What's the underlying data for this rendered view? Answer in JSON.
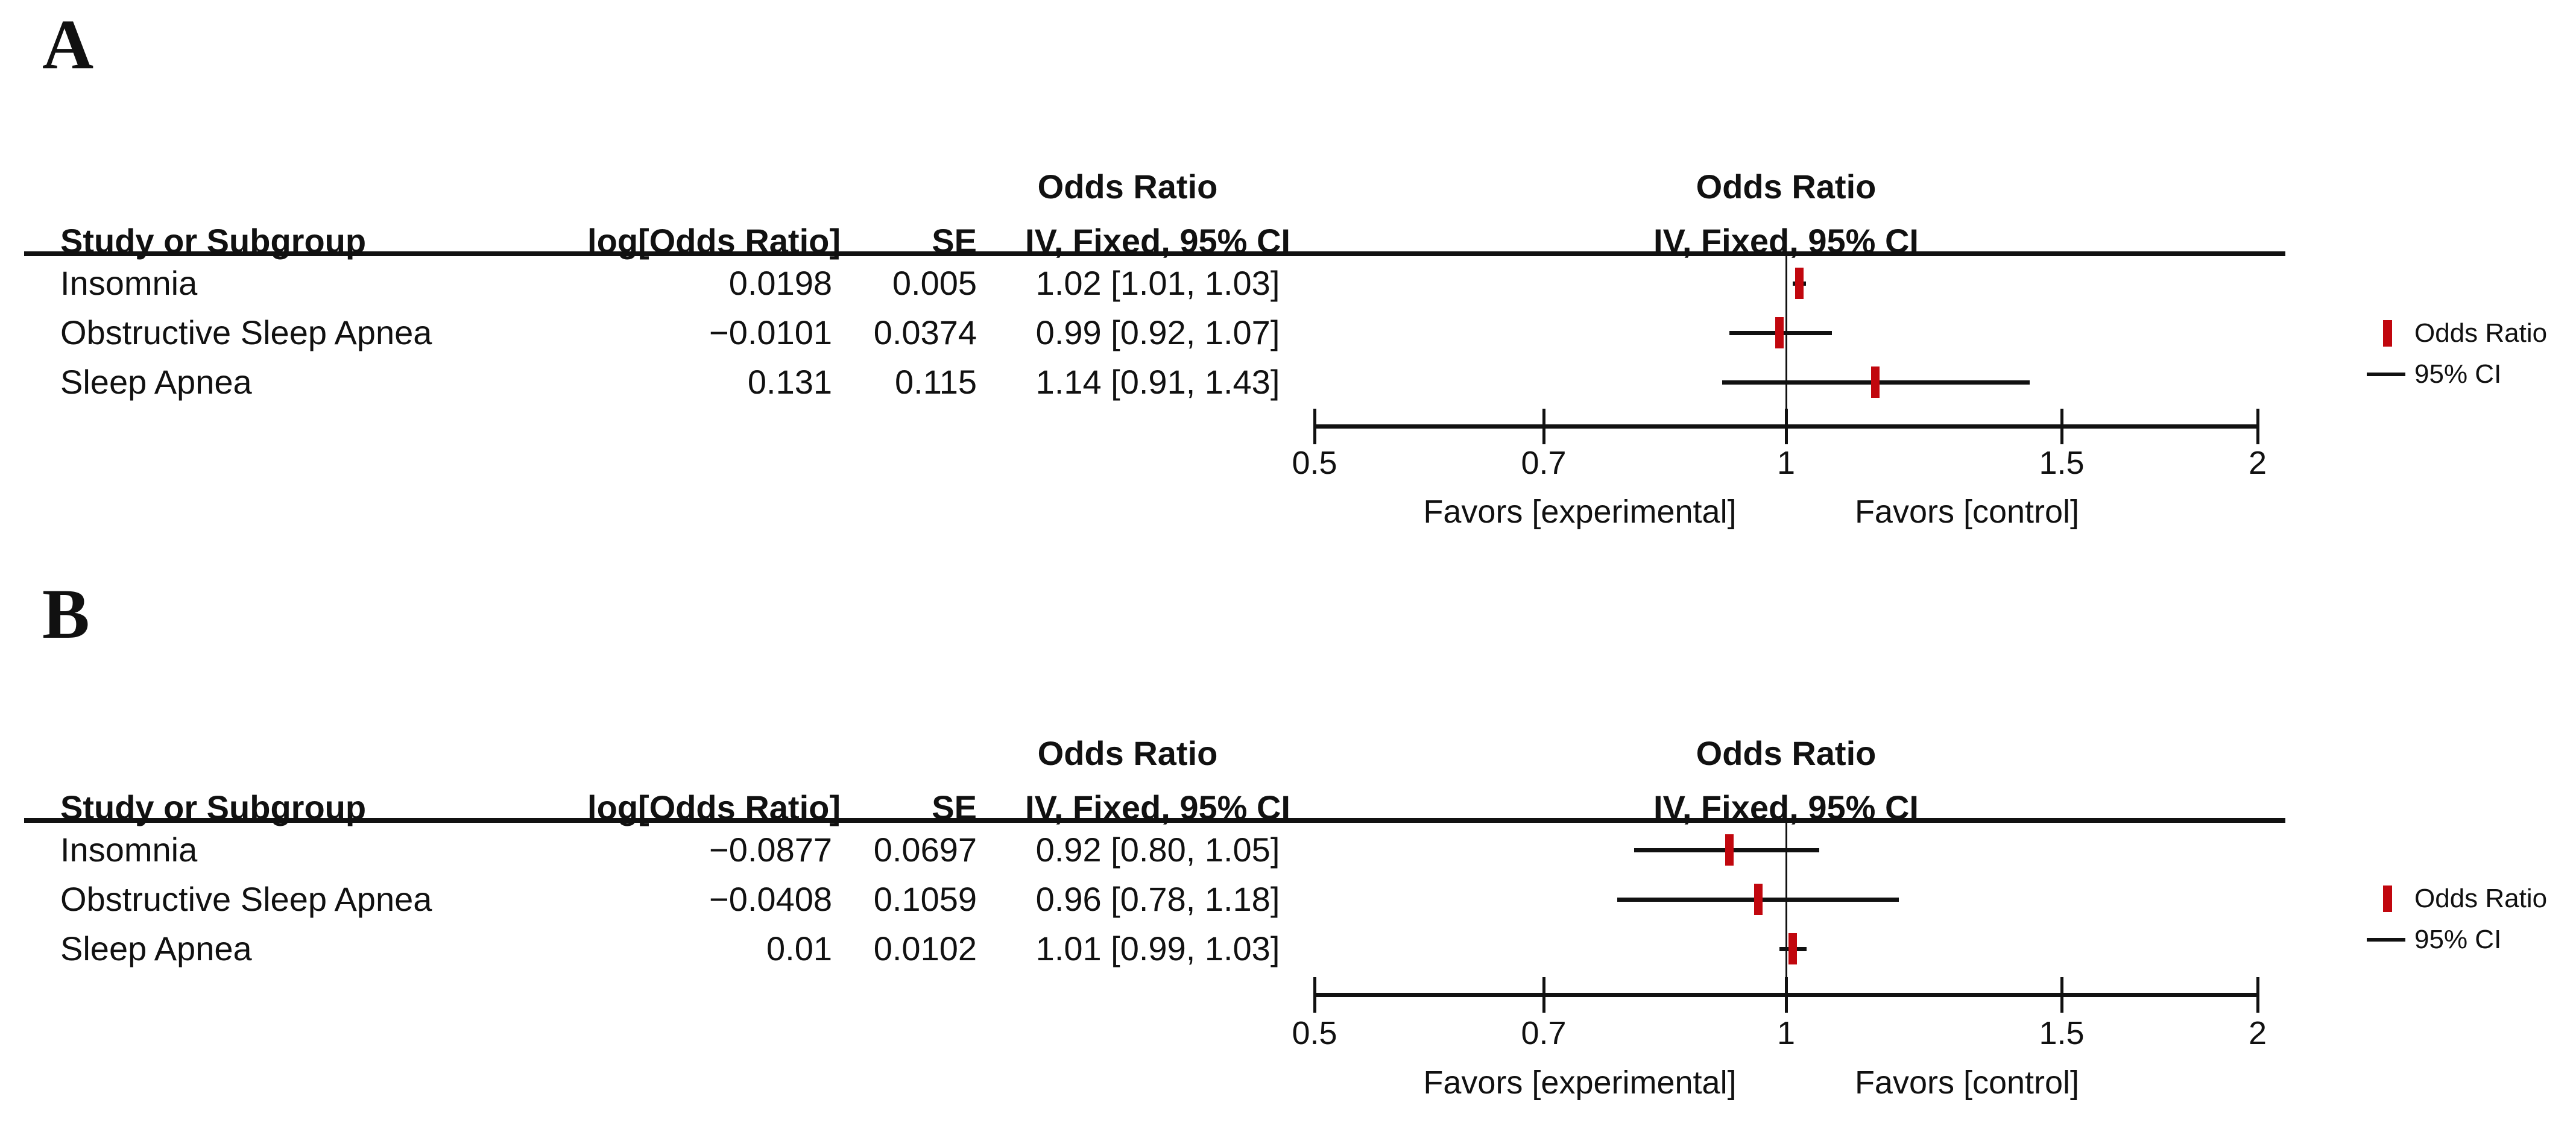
{
  "figure": {
    "background": "#ffffff",
    "line_color": "#111111",
    "accent_red": "#c1070e"
  },
  "legend": {
    "marker_label": "Odds Ratio",
    "line_label": "95% CI"
  },
  "panels": [
    {
      "label": "A",
      "col_headers": {
        "study": "Study or Subgroup",
        "log_or": "log[Odds Ratio]",
        "se": "SE",
        "or_group": "Odds Ratio",
        "or_ci": "IV, Fixed, 95% CI",
        "plot_group": "Odds Ratio",
        "plot_ci": "IV, Fixed, 95% CI"
      },
      "rows": [
        {
          "study": "Insomnia",
          "log_or": "0.0198",
          "se": "0.005",
          "or_ci_text": "1.02 [1.01, 1.03]",
          "or": 1.02,
          "ci_low": 1.01,
          "ci_high": 1.03
        },
        {
          "study": "Obstructive Sleep Apnea",
          "log_or": "−0.0101",
          "se": "0.0374",
          "or_ci_text": "0.99 [0.92, 1.07]",
          "or": 0.99,
          "ci_low": 0.92,
          "ci_high": 1.07
        },
        {
          "study": "Sleep Apnea",
          "log_or": "0.131",
          "se": "0.115",
          "or_ci_text": "1.14 [0.91, 1.43]",
          "or": 1.14,
          "ci_low": 0.91,
          "ci_high": 1.43
        }
      ],
      "axis": {
        "scale": "log",
        "min": 0.5,
        "max": 2,
        "tick_labels": [
          "0.5",
          "0.7",
          "1",
          "1.5",
          "2"
        ],
        "tick_values": [
          0.5,
          0.7,
          1,
          1.5,
          2
        ]
      },
      "favors_left": "Favors [experimental]",
      "favors_right": "Favors [control]"
    },
    {
      "label": "B",
      "col_headers": {
        "study": "Study or Subgroup",
        "log_or": "log[Odds Ratio]",
        "se": "SE",
        "or_group": "Odds Ratio",
        "or_ci": "IV, Fixed, 95% CI",
        "plot_group": "Odds Ratio",
        "plot_ci": "IV, Fixed, 95% CI"
      },
      "rows": [
        {
          "study": "Insomnia",
          "log_or": "−0.0877",
          "se": "0.0697",
          "or_ci_text": "0.92 [0.80, 1.05]",
          "or": 0.92,
          "ci_low": 0.8,
          "ci_high": 1.05
        },
        {
          "study": "Obstructive Sleep Apnea",
          "log_or": "−0.0408",
          "se": "0.1059",
          "or_ci_text": "0.96 [0.78, 1.18]",
          "or": 0.96,
          "ci_low": 0.78,
          "ci_high": 1.18
        },
        {
          "study": "Sleep Apnea",
          "log_or": "0.01",
          "se": "0.0102",
          "or_ci_text": "1.01 [0.99, 1.03]",
          "or": 1.01,
          "ci_low": 0.99,
          "ci_high": 1.03
        }
      ],
      "axis": {
        "scale": "log",
        "min": 0.5,
        "max": 2,
        "tick_labels": [
          "0.5",
          "0.7",
          "1",
          "1.5",
          "2"
        ],
        "tick_values": [
          0.5,
          0.7,
          1,
          1.5,
          2
        ]
      },
      "favors_left": "Favors [experimental]",
      "favors_right": "Favors [control]"
    }
  ],
  "chart_data": [
    {
      "type": "scatter",
      "subtype": "forest-plot",
      "panel": "A",
      "title": "Odds Ratio IV, Fixed, 95% CI",
      "x_scale": "log",
      "xlim": [
        0.5,
        2
      ],
      "x_ticks": [
        0.5,
        0.7,
        1,
        1.5,
        2
      ],
      "categories": [
        "Insomnia",
        "Obstructive Sleep Apnea",
        "Sleep Apnea"
      ],
      "series": [
        {
          "name": "log[Odds Ratio]",
          "values": [
            0.0198,
            -0.0101,
            0.131
          ]
        },
        {
          "name": "SE",
          "values": [
            0.005,
            0.0374,
            0.115
          ]
        },
        {
          "name": "Odds Ratio",
          "values": [
            1.02,
            0.99,
            1.14
          ]
        },
        {
          "name": "95% CI lower",
          "values": [
            1.01,
            0.92,
            0.91
          ]
        },
        {
          "name": "95% CI upper",
          "values": [
            1.03,
            1.07,
            1.43
          ]
        }
      ],
      "reference_line_x": 1,
      "annotations": [
        "Favors [experimental]",
        "Favors [control]"
      ],
      "legend_entries": [
        "Odds Ratio",
        "95% CI"
      ],
      "legend_position": "right",
      "grid": false
    },
    {
      "type": "scatter",
      "subtype": "forest-plot",
      "panel": "B",
      "title": "Odds Ratio IV, Fixed, 95% CI",
      "x_scale": "log",
      "xlim": [
        0.5,
        2
      ],
      "x_ticks": [
        0.5,
        0.7,
        1,
        1.5,
        2
      ],
      "categories": [
        "Insomnia",
        "Obstructive Sleep Apnea",
        "Sleep Apnea"
      ],
      "series": [
        {
          "name": "log[Odds Ratio]",
          "values": [
            -0.0877,
            -0.0408,
            0.01
          ]
        },
        {
          "name": "SE",
          "values": [
            0.0697,
            0.1059,
            0.0102
          ]
        },
        {
          "name": "Odds Ratio",
          "values": [
            0.92,
            0.96,
            1.01
          ]
        },
        {
          "name": "95% CI lower",
          "values": [
            0.8,
            0.78,
            0.99
          ]
        },
        {
          "name": "95% CI upper",
          "values": [
            1.05,
            1.18,
            1.03
          ]
        }
      ],
      "reference_line_x": 1,
      "annotations": [
        "Favors [experimental]",
        "Favors [control]"
      ],
      "legend_entries": [
        "Odds Ratio",
        "95% CI"
      ],
      "legend_position": "right",
      "grid": false
    }
  ]
}
